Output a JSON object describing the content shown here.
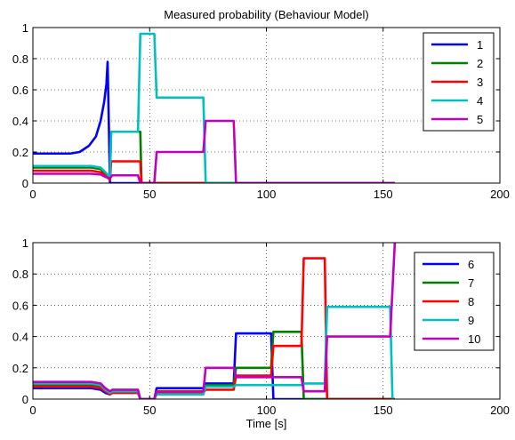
{
  "chart_data": [
    {
      "type": "line",
      "title": "Measured probability (Behaviour Model)",
      "xlabel": "",
      "ylabel": "",
      "xlim": [
        0,
        200
      ],
      "ylim": [
        0,
        1
      ],
      "xticks": [
        0,
        50,
        100,
        150,
        200
      ],
      "yticks": [
        0,
        0.2,
        0.4,
        0.6,
        0.8,
        1
      ],
      "ytick_labels": [
        "0",
        "0.2",
        "0.4",
        "0.6",
        "0.8",
        "1"
      ],
      "grid": true,
      "legend": "top-right",
      "series": [
        {
          "name": "1",
          "color": "#0000ff",
          "points": [
            [
              0,
              0.19
            ],
            [
              16,
              0.19
            ],
            [
              20,
              0.2
            ],
            [
              24,
              0.24
            ],
            [
              27,
              0.3
            ],
            [
              29,
              0.4
            ],
            [
              30.5,
              0.52
            ],
            [
              31.5,
              0.64
            ],
            [
              32,
              0.78
            ],
            [
              33,
              0
            ],
            [
              155,
              0
            ]
          ]
        },
        {
          "name": "2",
          "color": "#007f00",
          "points": [
            [
              0,
              0.1
            ],
            [
              25,
              0.1
            ],
            [
              29,
              0.09
            ],
            [
              31,
              0.06
            ],
            [
              33,
              0.03
            ],
            [
              33.5,
              0.33
            ],
            [
              46,
              0.33
            ],
            [
              46.5,
              0
            ],
            [
              155,
              0
            ]
          ]
        },
        {
          "name": "3",
          "color": "#ff0000",
          "points": [
            [
              0,
              0.08
            ],
            [
              25,
              0.08
            ],
            [
              29,
              0.07
            ],
            [
              31,
              0.05
            ],
            [
              33,
              0.02
            ],
            [
              33.5,
              0.14
            ],
            [
              46,
              0.14
            ],
            [
              46.5,
              0
            ],
            [
              155,
              0
            ]
          ]
        },
        {
          "name": "4",
          "color": "#00bfbf",
          "points": [
            [
              0,
              0.11
            ],
            [
              25,
              0.11
            ],
            [
              29,
              0.1
            ],
            [
              31,
              0.07
            ],
            [
              33,
              0.04
            ],
            [
              33.5,
              0.33
            ],
            [
              45,
              0.33
            ],
            [
              46,
              0.96
            ],
            [
              52,
              0.96
            ],
            [
              53,
              0.55
            ],
            [
              73,
              0.55
            ],
            [
              74,
              0
            ],
            [
              155,
              0
            ]
          ]
        },
        {
          "name": "5",
          "color": "#bf00bf",
          "points": [
            [
              0,
              0.06
            ],
            [
              25,
              0.06
            ],
            [
              29,
              0.055
            ],
            [
              31,
              0.04
            ],
            [
              33,
              0.03
            ],
            [
              34,
              0.05
            ],
            [
              45,
              0.05
            ],
            [
              46,
              0
            ],
            [
              52,
              0
            ],
            [
              53,
              0.2
            ],
            [
              73,
              0.2
            ],
            [
              74,
              0.4
            ],
            [
              86,
              0.4
            ],
            [
              87,
              0
            ],
            [
              155,
              0
            ]
          ]
        }
      ]
    },
    {
      "type": "line",
      "title": "",
      "xlabel": "Time [s]",
      "ylabel": "",
      "xlim": [
        0,
        200
      ],
      "ylim": [
        0,
        1
      ],
      "xticks": [
        0,
        50,
        100,
        150,
        200
      ],
      "yticks": [
        0,
        0.2,
        0.4,
        0.6,
        0.8,
        1
      ],
      "ytick_labels": [
        "0",
        "0.2",
        "0.4",
        "0.6",
        "0.8",
        "1"
      ],
      "grid": true,
      "legend": "top-right",
      "series": [
        {
          "name": "6",
          "color": "#0000ff",
          "points": [
            [
              0,
              0.07
            ],
            [
              25,
              0.07
            ],
            [
              29,
              0.06
            ],
            [
              31,
              0.04
            ],
            [
              33,
              0.03
            ],
            [
              34,
              0.04
            ],
            [
              45,
              0.04
            ],
            [
              46,
              0
            ],
            [
              52,
              0
            ],
            [
              53,
              0.07
            ],
            [
              73,
              0.07
            ],
            [
              74,
              0.1
            ],
            [
              86,
              0.1
            ],
            [
              87,
              0.42
            ],
            [
              102,
              0.42
            ],
            [
              103,
              0
            ],
            [
              155,
              0
            ]
          ]
        },
        {
          "name": "7",
          "color": "#007f00",
          "points": [
            [
              0,
              0.09
            ],
            [
              25,
              0.09
            ],
            [
              29,
              0.08
            ],
            [
              31,
              0.06
            ],
            [
              33,
              0.04
            ],
            [
              34,
              0.05
            ],
            [
              45,
              0.05
            ],
            [
              46,
              0
            ],
            [
              52,
              0
            ],
            [
              53,
              0.04
            ],
            [
              73,
              0.04
            ],
            [
              74,
              0.09
            ],
            [
              86,
              0.09
            ],
            [
              87,
              0.2
            ],
            [
              102,
              0.2
            ],
            [
              103,
              0.43
            ],
            [
              115,
              0.43
            ],
            [
              116,
              0
            ],
            [
              155,
              0
            ]
          ]
        },
        {
          "name": "8",
          "color": "#ff0000",
          "points": [
            [
              0,
              0.08
            ],
            [
              25,
              0.08
            ],
            [
              29,
              0.07
            ],
            [
              31,
              0.05
            ],
            [
              33,
              0.03
            ],
            [
              34,
              0.04
            ],
            [
              45,
              0.04
            ],
            [
              46,
              0
            ],
            [
              52,
              0
            ],
            [
              53,
              0.04
            ],
            [
              73,
              0.04
            ],
            [
              74,
              0.06
            ],
            [
              86,
              0.06
            ],
            [
              87,
              0.15
            ],
            [
              102,
              0.15
            ],
            [
              103,
              0.34
            ],
            [
              115,
              0.34
            ],
            [
              116,
              0.9
            ],
            [
              125,
              0.9
            ],
            [
              126,
              0
            ],
            [
              155,
              0
            ]
          ]
        },
        {
          "name": "9",
          "color": "#00bfbf",
          "points": [
            [
              0,
              0.1
            ],
            [
              25,
              0.1
            ],
            [
              29,
              0.09
            ],
            [
              31,
              0.06
            ],
            [
              33,
              0.04
            ],
            [
              34,
              0.05
            ],
            [
              45,
              0.05
            ],
            [
              46,
              0
            ],
            [
              52,
              0
            ],
            [
              53,
              0.03
            ],
            [
              73,
              0.03
            ],
            [
              74,
              0.08
            ],
            [
              86,
              0.08
            ],
            [
              87,
              0.09
            ],
            [
              115,
              0.09
            ],
            [
              116,
              0.1
            ],
            [
              125,
              0.1
            ],
            [
              126,
              0.59
            ],
            [
              153,
              0.59
            ],
            [
              154,
              0
            ]
          ]
        },
        {
          "name": "10",
          "color": "#bf00bf",
          "points": [
            [
              0,
              0.11
            ],
            [
              25,
              0.11
            ],
            [
              29,
              0.1
            ],
            [
              31,
              0.07
            ],
            [
              33,
              0.05
            ],
            [
              34,
              0.06
            ],
            [
              45,
              0.06
            ],
            [
              46,
              0
            ],
            [
              52,
              0
            ],
            [
              53,
              0.05
            ],
            [
              73,
              0.05
            ],
            [
              74,
              0.2
            ],
            [
              86,
              0.2
            ],
            [
              87,
              0.14
            ],
            [
              115,
              0.14
            ],
            [
              116,
              0.05
            ],
            [
              125,
              0.05
            ],
            [
              126,
              0.4
            ],
            [
              153,
              0.4
            ],
            [
              155,
              1
            ]
          ]
        }
      ]
    }
  ]
}
